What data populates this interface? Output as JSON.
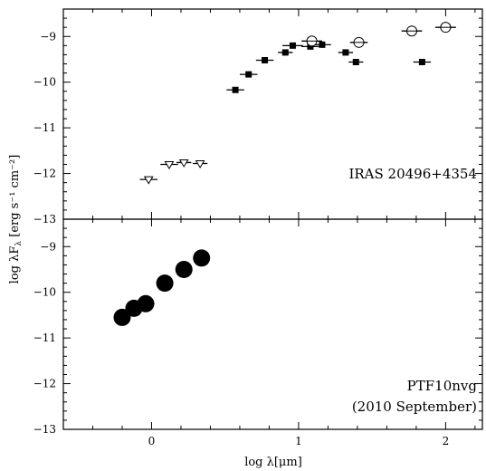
{
  "chart_data": {
    "type": "scatter",
    "xlabel": "log λ[μm]",
    "ylabel_main": "log λF",
    "ylabel_sub": "λ",
    "ylabel_units": " [erg s⁻¹ cm⁻²]",
    "xlim": [
      -0.6,
      2.25
    ],
    "x_ticks": [
      0,
      1,
      2
    ],
    "x_tick_labels": [
      "0",
      "1",
      "2"
    ],
    "panels": [
      {
        "ylim": [
          -13,
          -8.4
        ],
        "y_ticks": [
          -9,
          -10,
          -11,
          -12,
          -13
        ],
        "y_tick_labels": [
          "−9",
          "−10",
          "−11",
          "−12",
          "−13"
        ],
        "annotation": [
          "IRAS 20496+4354"
        ],
        "series": [
          {
            "marker": "filled-square",
            "points": [
              {
                "x": 0.57,
                "y": -10.17,
                "xerr": 0.06
              },
              {
                "x": 0.66,
                "y": -9.83,
                "xerr": 0.06
              },
              {
                "x": 0.77,
                "y": -9.52,
                "xerr": 0.06
              },
              {
                "x": 0.91,
                "y": -9.35,
                "xerr": 0.05
              },
              {
                "x": 0.96,
                "y": -9.2,
                "xerr": 0.07
              },
              {
                "x": 1.08,
                "y": -9.22,
                "xerr": 0.06
              },
              {
                "x": 1.16,
                "y": -9.18,
                "xerr": 0.06
              },
              {
                "x": 1.32,
                "y": -9.35,
                "xerr": 0.05
              },
              {
                "x": 1.39,
                "y": -9.56,
                "xerr": 0.05
              },
              {
                "x": 1.84,
                "y": -9.56,
                "xerr": 0.06
              }
            ]
          },
          {
            "marker": "open-circle",
            "points": [
              {
                "x": 1.09,
                "y": -9.1,
                "xerr": 0.07
              },
              {
                "x": 1.41,
                "y": -9.13,
                "xerr": 0.06
              },
              {
                "x": 1.77,
                "y": -8.88,
                "xerr": 0.07
              },
              {
                "x": 2.0,
                "y": -8.8,
                "xerr": 0.07
              }
            ]
          },
          {
            "marker": "open-triangle-down",
            "points": [
              {
                "x": -0.02,
                "y": -12.13,
                "xerr": 0.06
              },
              {
                "x": 0.12,
                "y": -11.8,
                "xerr": 0.06
              },
              {
                "x": 0.22,
                "y": -11.76,
                "xerr": 0.05
              },
              {
                "x": 0.33,
                "y": -11.78,
                "xerr": 0.05
              }
            ]
          }
        ]
      },
      {
        "ylim": [
          -13,
          -8.4
        ],
        "y_ticks": [
          -9,
          -10,
          -11,
          -12,
          -13
        ],
        "y_tick_labels": [
          "−9",
          "−10",
          "−11",
          "−12",
          "−13"
        ],
        "annotation": [
          "PTF10nvg",
          "(2010 September)"
        ],
        "series": [
          {
            "marker": "large-filled-circle",
            "points": [
              {
                "x": -0.2,
                "y": -10.55,
                "xerr": 0.04
              },
              {
                "x": -0.12,
                "y": -10.35,
                "xerr": 0.04
              },
              {
                "x": -0.04,
                "y": -10.25,
                "xerr": 0.06
              },
              {
                "x": 0.09,
                "y": -9.8,
                "xerr": 0.04
              },
              {
                "x": 0.22,
                "y": -9.5,
                "xerr": 0.04
              },
              {
                "x": 0.34,
                "y": -9.25,
                "xerr": 0.04
              }
            ]
          }
        ]
      }
    ]
  }
}
